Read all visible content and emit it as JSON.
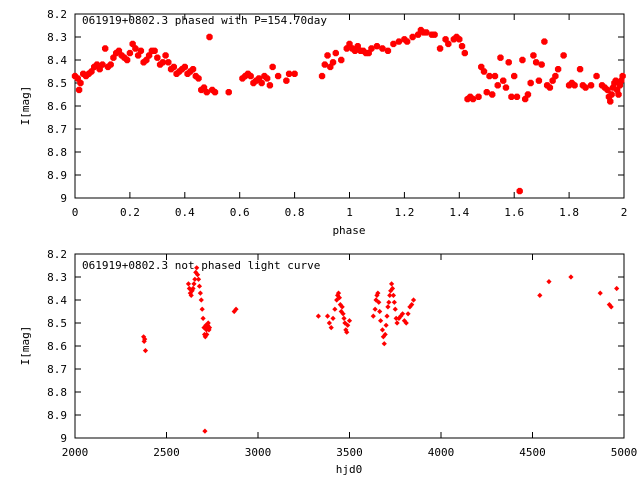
{
  "chart_data": [
    {
      "type": "scatter",
      "title": "061919+0802.3 phased with P=154.70day",
      "xlabel": "phase",
      "ylabel": "I[mag]",
      "xlim": [
        0,
        2
      ],
      "ylim": [
        9,
        8.2
      ],
      "y_inverted": true,
      "xticks": [
        "0",
        "0.2",
        "0.4",
        "0.6",
        "0.8",
        "1",
        "1.2",
        "1.4",
        "1.6",
        "1.8",
        "2"
      ],
      "yticks": [
        "8.2",
        "8.3",
        "8.4",
        "8.5",
        "8.6",
        "8.7",
        "8.8",
        "8.9",
        "9"
      ],
      "grid": false,
      "legend": "none",
      "marker_color": "#ff0000",
      "marker": "filled-octagon",
      "points": [
        [
          0.0,
          8.47
        ],
        [
          0.01,
          8.48
        ],
        [
          0.015,
          8.53
        ],
        [
          0.02,
          8.5
        ],
        [
          0.03,
          8.46
        ],
        [
          0.04,
          8.47
        ],
        [
          0.05,
          8.46
        ],
        [
          0.06,
          8.45
        ],
        [
          0.07,
          8.43
        ],
        [
          0.08,
          8.42
        ],
        [
          0.09,
          8.44
        ],
        [
          0.1,
          8.42
        ],
        [
          0.11,
          8.35
        ],
        [
          0.12,
          8.43
        ],
        [
          0.13,
          8.42
        ],
        [
          0.14,
          8.39
        ],
        [
          0.15,
          8.37
        ],
        [
          0.16,
          8.36
        ],
        [
          0.17,
          8.38
        ],
        [
          0.18,
          8.39
        ],
        [
          0.19,
          8.4
        ],
        [
          0.2,
          8.37
        ],
        [
          0.21,
          8.33
        ],
        [
          0.22,
          8.35
        ],
        [
          0.23,
          8.38
        ],
        [
          0.24,
          8.36
        ],
        [
          0.25,
          8.41
        ],
        [
          0.26,
          8.4
        ],
        [
          0.27,
          8.38
        ],
        [
          0.28,
          8.36
        ],
        [
          0.29,
          8.36
        ],
        [
          0.3,
          8.39
        ],
        [
          0.31,
          8.42
        ],
        [
          0.32,
          8.41
        ],
        [
          0.33,
          8.38
        ],
        [
          0.34,
          8.41
        ],
        [
          0.35,
          8.44
        ],
        [
          0.36,
          8.43
        ],
        [
          0.37,
          8.46
        ],
        [
          0.38,
          8.45
        ],
        [
          0.39,
          8.44
        ],
        [
          0.4,
          8.43
        ],
        [
          0.41,
          8.46
        ],
        [
          0.42,
          8.45
        ],
        [
          0.43,
          8.44
        ],
        [
          0.44,
          8.47
        ],
        [
          0.45,
          8.48
        ],
        [
          0.46,
          8.53
        ],
        [
          0.47,
          8.52
        ],
        [
          0.48,
          8.54
        ],
        [
          0.49,
          8.3
        ],
        [
          0.5,
          8.53
        ],
        [
          0.51,
          8.54
        ],
        [
          0.56,
          8.54
        ],
        [
          0.61,
          8.48
        ],
        [
          0.62,
          8.47
        ],
        [
          0.63,
          8.46
        ],
        [
          0.64,
          8.47
        ],
        [
          0.65,
          8.5
        ],
        [
          0.66,
          8.49
        ],
        [
          0.67,
          8.48
        ],
        [
          0.68,
          8.5
        ],
        [
          0.69,
          8.47
        ],
        [
          0.7,
          8.48
        ],
        [
          0.71,
          8.51
        ],
        [
          0.72,
          8.43
        ],
        [
          0.74,
          8.47
        ],
        [
          0.77,
          8.49
        ],
        [
          0.78,
          8.46
        ],
        [
          0.8,
          8.46
        ],
        [
          0.9,
          8.47
        ],
        [
          0.91,
          8.42
        ],
        [
          0.92,
          8.38
        ],
        [
          0.93,
          8.43
        ],
        [
          0.94,
          8.41
        ],
        [
          0.95,
          8.37
        ],
        [
          0.97,
          8.4
        ],
        [
          0.99,
          8.35
        ],
        [
          1.0,
          8.33
        ],
        [
          1.01,
          8.35
        ],
        [
          1.02,
          8.36
        ],
        [
          1.03,
          8.34
        ],
        [
          1.04,
          8.36
        ],
        [
          1.05,
          8.36
        ],
        [
          1.06,
          8.37
        ],
        [
          1.07,
          8.37
        ],
        [
          1.08,
          8.35
        ],
        [
          1.1,
          8.34
        ],
        [
          1.12,
          8.35
        ],
        [
          1.14,
          8.36
        ],
        [
          1.16,
          8.33
        ],
        [
          1.18,
          8.32
        ],
        [
          1.2,
          8.31
        ],
        [
          1.21,
          8.32
        ],
        [
          1.23,
          8.3
        ],
        [
          1.25,
          8.29
        ],
        [
          1.26,
          8.27
        ],
        [
          1.27,
          8.28
        ],
        [
          1.28,
          8.28
        ],
        [
          1.3,
          8.29
        ],
        [
          1.31,
          8.29
        ],
        [
          1.33,
          8.35
        ],
        [
          1.35,
          8.31
        ],
        [
          1.36,
          8.33
        ],
        [
          1.38,
          8.31
        ],
        [
          1.39,
          8.3
        ],
        [
          1.4,
          8.31
        ],
        [
          1.41,
          8.34
        ],
        [
          1.42,
          8.37
        ],
        [
          1.43,
          8.57
        ],
        [
          1.44,
          8.56
        ],
        [
          1.45,
          8.57
        ],
        [
          1.47,
          8.56
        ],
        [
          1.48,
          8.43
        ],
        [
          1.49,
          8.45
        ],
        [
          1.5,
          8.54
        ],
        [
          1.51,
          8.47
        ],
        [
          1.52,
          8.55
        ],
        [
          1.53,
          8.47
        ],
        [
          1.54,
          8.51
        ],
        [
          1.55,
          8.39
        ],
        [
          1.56,
          8.49
        ],
        [
          1.57,
          8.52
        ],
        [
          1.58,
          8.41
        ],
        [
          1.59,
          8.56
        ],
        [
          1.6,
          8.47
        ],
        [
          1.61,
          8.56
        ],
        [
          1.62,
          8.97
        ],
        [
          1.63,
          8.4
        ],
        [
          1.64,
          8.57
        ],
        [
          1.65,
          8.55
        ],
        [
          1.66,
          8.5
        ],
        [
          1.67,
          8.38
        ],
        [
          1.68,
          8.41
        ],
        [
          1.69,
          8.49
        ],
        [
          1.7,
          8.42
        ],
        [
          1.71,
          8.32
        ],
        [
          1.72,
          8.51
        ],
        [
          1.73,
          8.52
        ],
        [
          1.74,
          8.49
        ],
        [
          1.75,
          8.47
        ],
        [
          1.76,
          8.44
        ],
        [
          1.78,
          8.38
        ],
        [
          1.8,
          8.51
        ],
        [
          1.81,
          8.5
        ],
        [
          1.82,
          8.51
        ],
        [
          1.84,
          8.44
        ],
        [
          1.85,
          8.51
        ],
        [
          1.86,
          8.52
        ],
        [
          1.88,
          8.51
        ],
        [
          1.9,
          8.47
        ],
        [
          1.92,
          8.51
        ],
        [
          1.93,
          8.52
        ],
        [
          1.94,
          8.53
        ],
        [
          1.945,
          8.56
        ],
        [
          1.95,
          8.58
        ],
        [
          1.955,
          8.55
        ],
        [
          1.96,
          8.52
        ],
        [
          1.965,
          8.5
        ],
        [
          1.97,
          8.49
        ],
        [
          1.975,
          8.53
        ],
        [
          1.98,
          8.55
        ],
        [
          1.985,
          8.51
        ],
        [
          1.99,
          8.49
        ],
        [
          1.995,
          8.47
        ]
      ]
    },
    {
      "type": "scatter",
      "title": "061919+0802.3 not phased light curve",
      "xlabel": "hjd0",
      "ylabel": "I[mag]",
      "xlim": [
        2000,
        5000
      ],
      "ylim": [
        9,
        8.2
      ],
      "y_inverted": true,
      "xticks": [
        "2000",
        "2500",
        "3000",
        "3500",
        "4000",
        "4500",
        "5000"
      ],
      "yticks": [
        "8.2",
        "8.3",
        "8.4",
        "8.5",
        "8.6",
        "8.7",
        "8.8",
        "8.9",
        "9"
      ],
      "grid": false,
      "legend": "none",
      "marker_color": "#ff0000",
      "marker": "filled-diamond",
      "points": [
        [
          2375,
          8.56
        ],
        [
          2378,
          8.58
        ],
        [
          2381,
          8.57
        ],
        [
          2385,
          8.62
        ],
        [
          2620,
          8.33
        ],
        [
          2625,
          8.35
        ],
        [
          2630,
          8.37
        ],
        [
          2635,
          8.38
        ],
        [
          2640,
          8.36
        ],
        [
          2645,
          8.35
        ],
        [
          2650,
          8.33
        ],
        [
          2655,
          8.31
        ],
        [
          2660,
          8.28
        ],
        [
          2665,
          8.26
        ],
        [
          2670,
          8.29
        ],
        [
          2675,
          8.31
        ],
        [
          2680,
          8.34
        ],
        [
          2685,
          8.37
        ],
        [
          2690,
          8.4
        ],
        [
          2695,
          8.44
        ],
        [
          2700,
          8.48
        ],
        [
          2705,
          8.52
        ],
        [
          2708,
          8.55
        ],
        [
          2712,
          8.56
        ],
        [
          2715,
          8.51
        ],
        [
          2718,
          8.53
        ],
        [
          2720,
          8.55
        ],
        [
          2722,
          8.52
        ],
        [
          2725,
          8.51
        ],
        [
          2728,
          8.5
        ],
        [
          2732,
          8.53
        ],
        [
          2735,
          8.52
        ],
        [
          2710,
          8.97
        ],
        [
          2870,
          8.45
        ],
        [
          2880,
          8.44
        ],
        [
          3330,
          8.47
        ],
        [
          3380,
          8.47
        ],
        [
          3390,
          8.5
        ],
        [
          3400,
          8.52
        ],
        [
          3410,
          8.48
        ],
        [
          3420,
          8.44
        ],
        [
          3430,
          8.4
        ],
        [
          3435,
          8.38
        ],
        [
          3440,
          8.37
        ],
        [
          3445,
          8.39
        ],
        [
          3450,
          8.42
        ],
        [
          3455,
          8.45
        ],
        [
          3460,
          8.43
        ],
        [
          3465,
          8.46
        ],
        [
          3470,
          8.48
        ],
        [
          3475,
          8.5
        ],
        [
          3480,
          8.53
        ],
        [
          3485,
          8.54
        ],
        [
          3490,
          8.51
        ],
        [
          3500,
          8.49
        ],
        [
          3630,
          8.47
        ],
        [
          3640,
          8.44
        ],
        [
          3645,
          8.4
        ],
        [
          3650,
          8.38
        ],
        [
          3655,
          8.37
        ],
        [
          3660,
          8.41
        ],
        [
          3665,
          8.45
        ],
        [
          3670,
          8.49
        ],
        [
          3680,
          8.53
        ],
        [
          3685,
          8.56
        ],
        [
          3690,
          8.59
        ],
        [
          3695,
          8.55
        ],
        [
          3700,
          8.51
        ],
        [
          3705,
          8.47
        ],
        [
          3710,
          8.43
        ],
        [
          3715,
          8.41
        ],
        [
          3720,
          8.38
        ],
        [
          3725,
          8.36
        ],
        [
          3730,
          8.33
        ],
        [
          3735,
          8.35
        ],
        [
          3740,
          8.38
        ],
        [
          3745,
          8.41
        ],
        [
          3750,
          8.44
        ],
        [
          3755,
          8.48
        ],
        [
          3760,
          8.5
        ],
        [
          3770,
          8.48
        ],
        [
          3780,
          8.47
        ],
        [
          3790,
          8.46
        ],
        [
          3800,
          8.49
        ],
        [
          3810,
          8.5
        ],
        [
          3820,
          8.46
        ],
        [
          3830,
          8.43
        ],
        [
          3840,
          8.42
        ],
        [
          3850,
          8.4
        ],
        [
          4540,
          8.38
        ],
        [
          4590,
          8.32
        ],
        [
          4710,
          8.3
        ],
        [
          4870,
          8.37
        ],
        [
          4920,
          8.42
        ],
        [
          4930,
          8.43
        ],
        [
          4960,
          8.35
        ]
      ]
    }
  ]
}
